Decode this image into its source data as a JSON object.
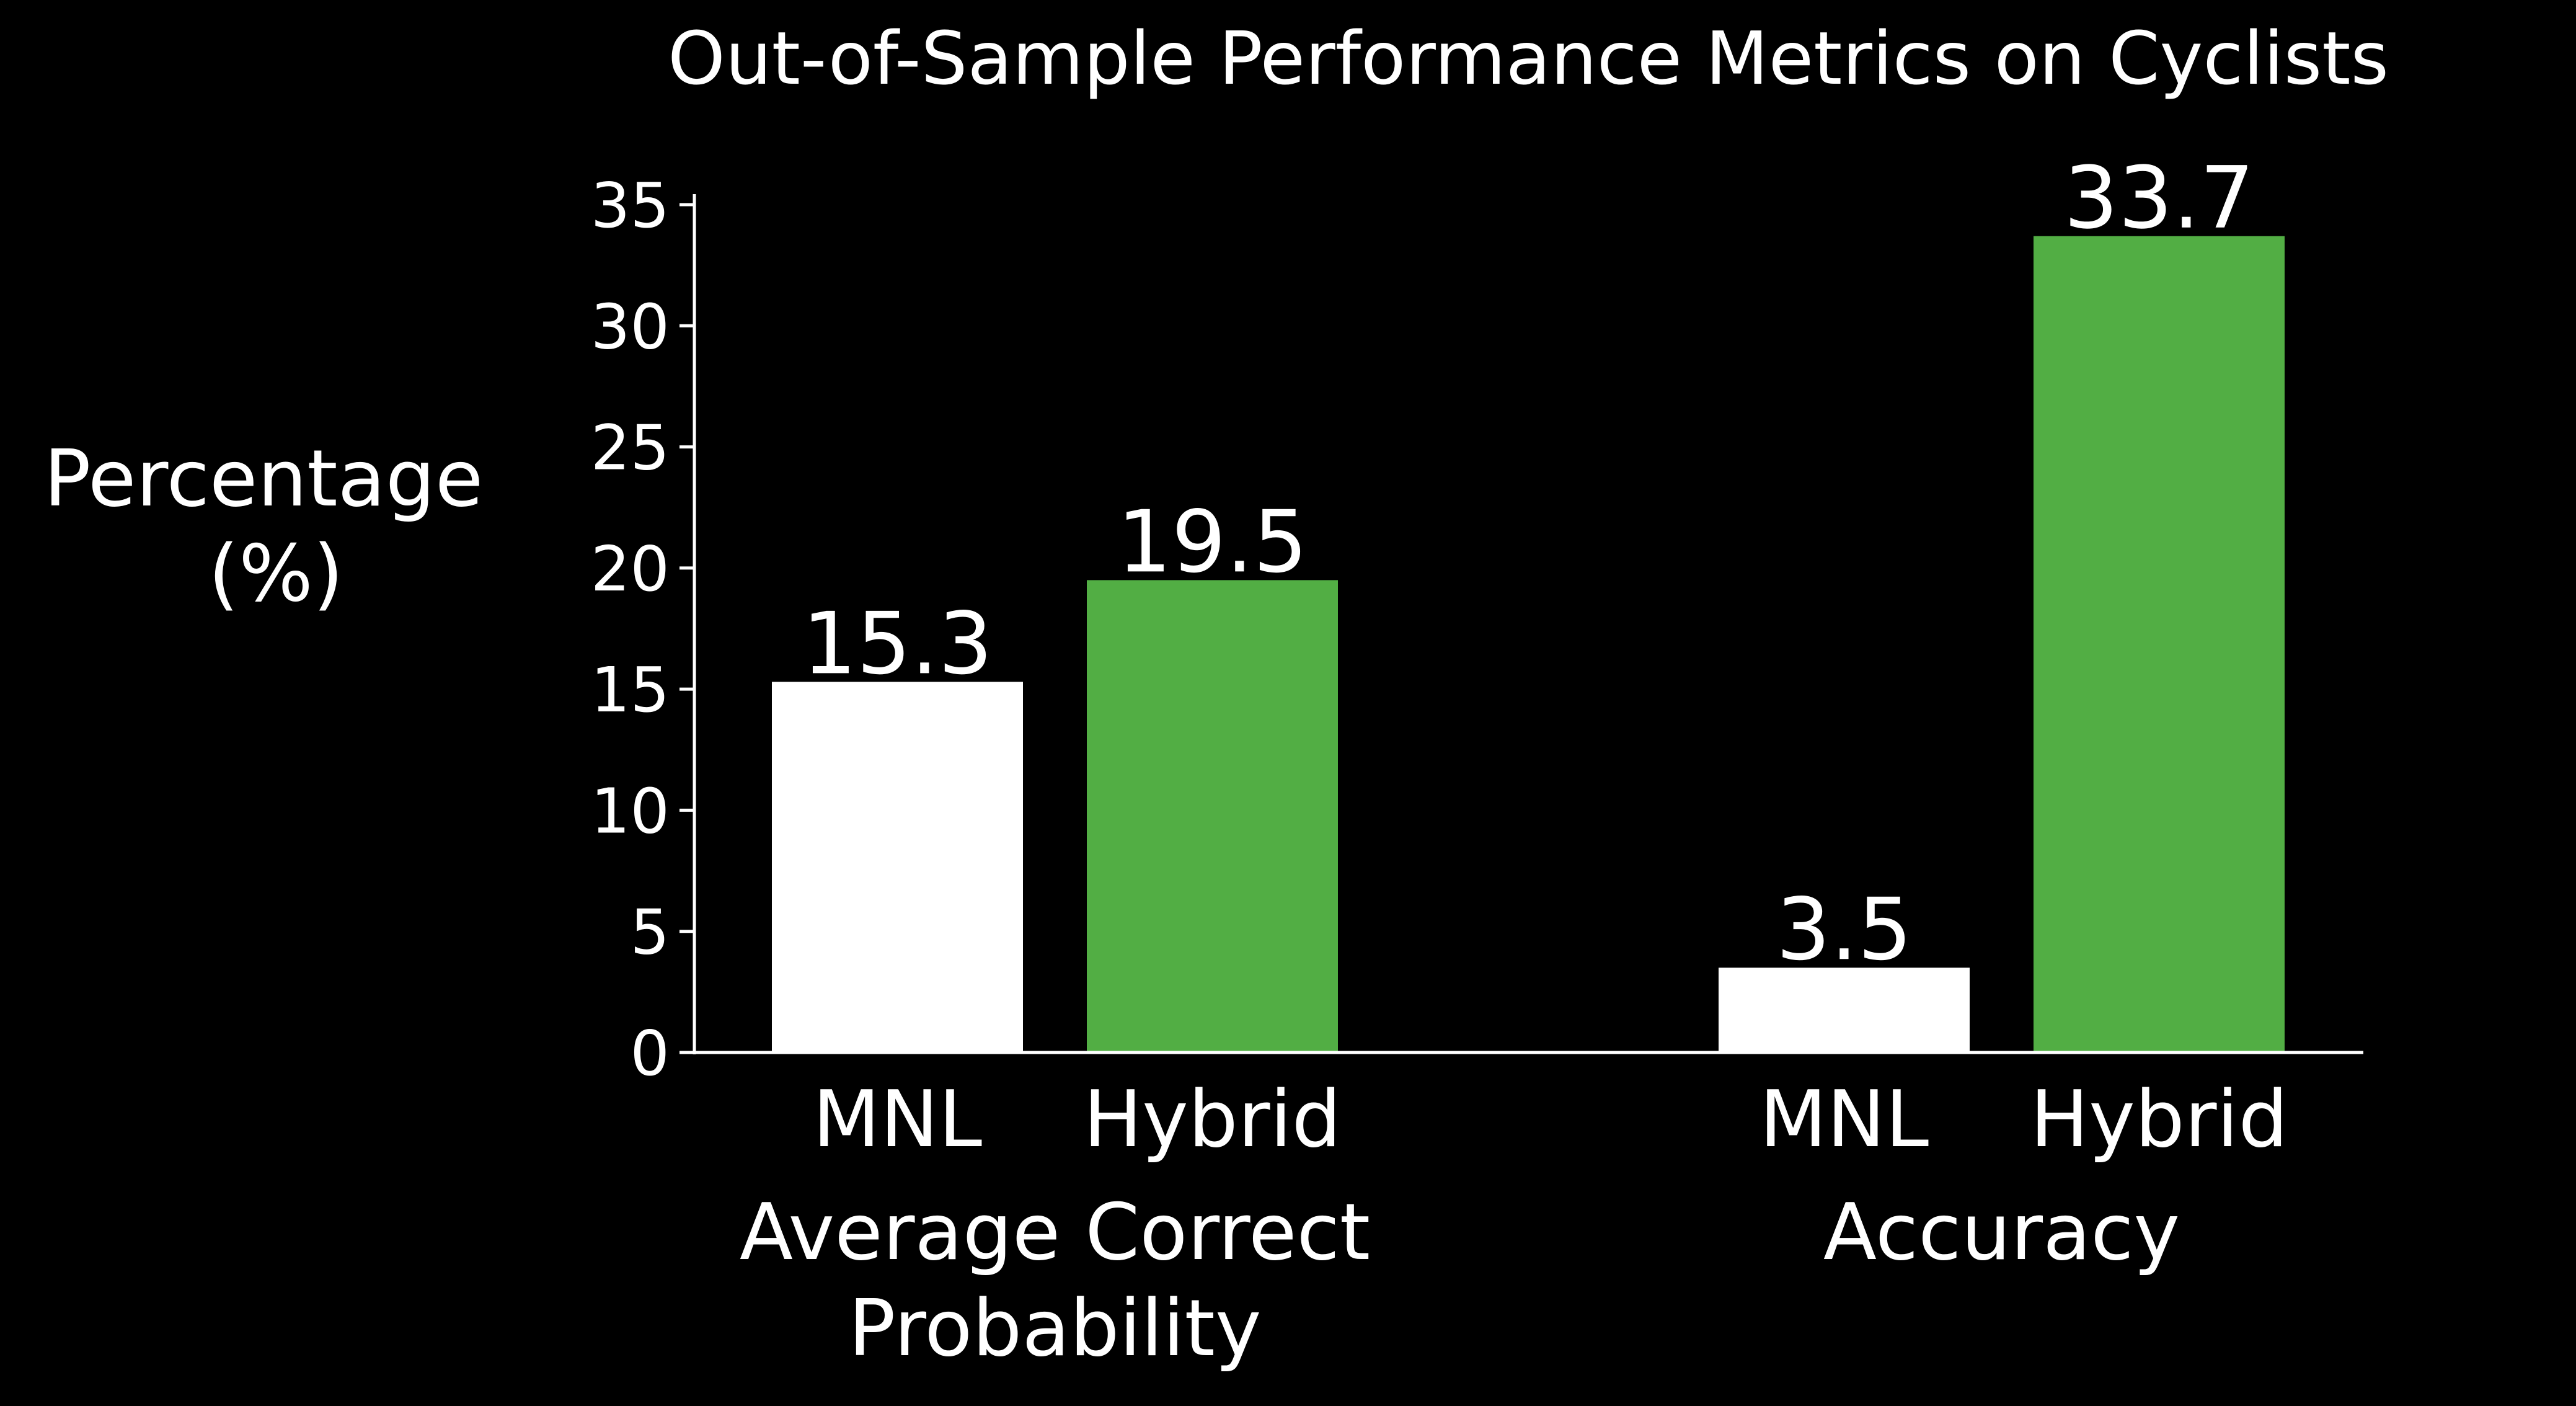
{
  "chart_data": {
    "type": "bar",
    "title": "Out-of-Sample Performance Metrics on Cyclists",
    "ylabel": [
      "Percentage",
      "(%)"
    ],
    "ylim": [
      0,
      35
    ],
    "yticks": [
      0,
      5,
      10,
      15,
      20,
      25,
      30,
      35
    ],
    "grid": false,
    "groups": [
      {
        "label": [
          "Average Correct",
          "Probability"
        ],
        "bars": [
          {
            "category": "MNL",
            "value": 15.3,
            "value_label": "15.3",
            "color": "#ffffff"
          },
          {
            "category": "Hybrid",
            "value": 19.5,
            "value_label": "19.5",
            "color": "#52ae44"
          }
        ]
      },
      {
        "label": [
          "Accuracy"
        ],
        "bars": [
          {
            "category": "MNL",
            "value": 3.5,
            "value_label": "3.5",
            "color": "#ffffff"
          },
          {
            "category": "Hybrid",
            "value": 33.7,
            "value_label": "33.7",
            "color": "#52ae44"
          }
        ]
      }
    ]
  },
  "colors": {
    "background": "#000000",
    "foreground": "#ffffff",
    "mnl": "#ffffff",
    "hybrid": "#52ae44"
  }
}
